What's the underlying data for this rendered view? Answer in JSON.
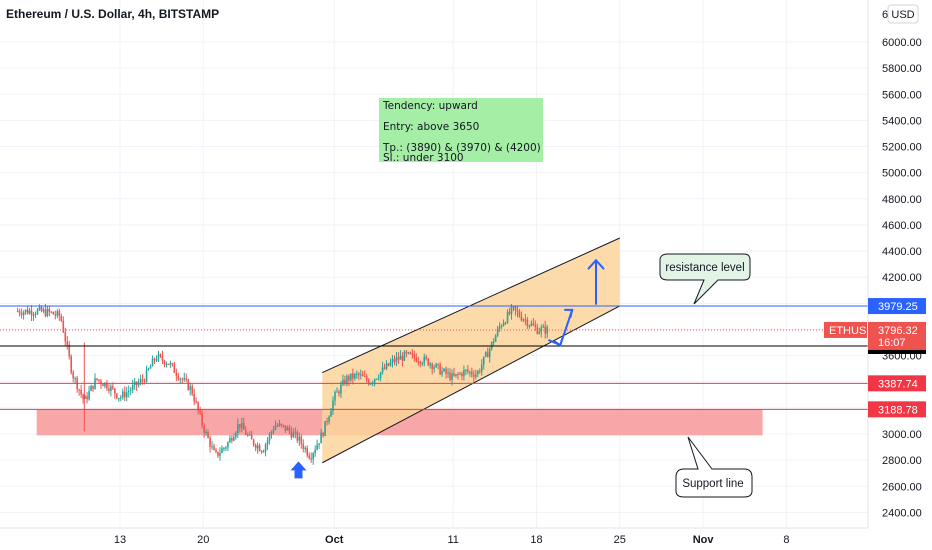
{
  "chart_data": {
    "type": "candlestick",
    "title": "Ethereum / U.S. Dollar, 4h, BITSTAMP",
    "currency_button": "USD",
    "ylim": [
      2300,
      6600
    ],
    "y_ticks": [
      2400,
      2600,
      2800,
      3000,
      3200,
      3400,
      3600,
      3800,
      4000,
      4200,
      4400,
      4600,
      4800,
      5000,
      5200,
      5400,
      5600,
      5800,
      6000
    ],
    "y_tick_labels": [
      "2400.00",
      "2600.00",
      "2800.00",
      "3000.00",
      "3200.00",
      "3400.00",
      "3600.00",
      "3800.00",
      "4000.00",
      "4200.00",
      "4400.00",
      "4600.00",
      "4800.00",
      "5000.00",
      "5200.00",
      "5400.00",
      "5600.00",
      "5800.00",
      "6000.00"
    ],
    "y_top_partial_label": "6.",
    "x_domain": [
      "2021-09-06",
      "2021-11-12"
    ],
    "x_ticks": [
      {
        "label": "13",
        "date": "2021-09-13",
        "bold": false
      },
      {
        "label": "20",
        "date": "2021-09-20",
        "bold": false
      },
      {
        "label": "Oct",
        "date": "2021-10-01",
        "bold": true
      },
      {
        "label": "11",
        "date": "2021-10-11",
        "bold": false
      },
      {
        "label": "18",
        "date": "2021-10-18",
        "bold": false
      },
      {
        "label": "25",
        "date": "2021-10-25",
        "bold": false
      },
      {
        "label": "Nov",
        "date": "2021-11-01",
        "bold": true
      },
      {
        "label": "8",
        "date": "2021-11-08",
        "bold": false
      }
    ],
    "price_path": [
      [
        "2021-09-06",
        3940
      ],
      [
        "2021-09-07",
        3930
      ],
      [
        "2021-09-08",
        3900
      ],
      [
        "2021-09-09",
        3460
      ],
      [
        "2021-09-10",
        3250
      ],
      [
        "2021-09-11",
        3420
      ],
      [
        "2021-09-12",
        3370
      ],
      [
        "2021-09-13",
        3280
      ],
      [
        "2021-09-14",
        3350
      ],
      [
        "2021-09-15",
        3420
      ],
      [
        "2021-09-16",
        3590
      ],
      [
        "2021-09-17",
        3550
      ],
      [
        "2021-09-18",
        3440
      ],
      [
        "2021-09-19",
        3340
      ],
      [
        "2021-09-20",
        3050
      ],
      [
        "2021-09-21",
        2830
      ],
      [
        "2021-09-22",
        2920
      ],
      [
        "2021-09-23",
        3080
      ],
      [
        "2021-09-24",
        2950
      ],
      [
        "2021-09-25",
        2880
      ],
      [
        "2021-09-26",
        3070
      ],
      [
        "2021-09-27",
        3040
      ],
      [
        "2021-09-28",
        2960
      ],
      [
        "2021-09-29",
        2830
      ],
      [
        "2021-09-30",
        3000
      ],
      [
        "2021-10-01",
        3280
      ],
      [
        "2021-10-02",
        3420
      ],
      [
        "2021-10-03",
        3450
      ],
      [
        "2021-10-04",
        3400
      ],
      [
        "2021-10-05",
        3480
      ],
      [
        "2021-10-06",
        3560
      ],
      [
        "2021-10-07",
        3600
      ],
      [
        "2021-10-08",
        3580
      ],
      [
        "2021-10-09",
        3550
      ],
      [
        "2021-10-10",
        3480
      ],
      [
        "2021-10-11",
        3430
      ],
      [
        "2021-10-12",
        3480
      ],
      [
        "2021-10-13",
        3460
      ],
      [
        "2021-10-14",
        3640
      ],
      [
        "2021-10-15",
        3840
      ],
      [
        "2021-10-16",
        3950
      ],
      [
        "2021-10-17",
        3880
      ],
      [
        "2021-10-18",
        3800
      ],
      [
        "2021-10-19",
        3796
      ]
    ],
    "horizontal_lines": [
      {
        "name": "resistance",
        "value": 3979.25,
        "label": "3979.25",
        "color": "#2962ff",
        "style": "solid"
      },
      {
        "name": "entry",
        "value": 3673.5,
        "label": "3673.50",
        "color": "#000000",
        "style": "solid"
      },
      {
        "name": "level-3387",
        "value": 3387.74,
        "label": "3387.74",
        "color": "#f23645",
        "style": "solid"
      },
      {
        "name": "level-3188",
        "value": 3188.78,
        "label": "3188.78",
        "color": "#f23645",
        "style": "solid"
      }
    ],
    "last_price": {
      "symbol": "ETHUSD",
      "value": 3796.32,
      "label": "3796.32",
      "countdown": "16:07",
      "color": "#ef5350"
    },
    "support_zone": {
      "from_date": "2021-09-06",
      "to_date": "2021-11-06",
      "low": 2990,
      "high": 3188.78,
      "color": "#f7a2a2"
    },
    "channel": {
      "lower": [
        [
          "2021-09-30",
          2780
        ],
        [
          "2021-10-25",
          3980
        ]
      ],
      "upper": [
        [
          "2021-09-30",
          3470
        ],
        [
          "2021-10-25",
          4500
        ]
      ],
      "fill": "#fbd39b"
    },
    "arrows": [
      {
        "type": "zigzag",
        "points": [
          [
            "2021-10-19",
            3720
          ],
          [
            "2021-10-21",
            3950
          ]
        ],
        "via": [
          "2021-10-20",
          3680
        ]
      },
      {
        "type": "up",
        "from": [
          "2021-10-23",
          3990
        ],
        "to": [
          "2021-10-23",
          4330
        ]
      }
    ],
    "marker": {
      "date": "2021-09-28",
      "value": 2660,
      "shape": "up-arrow",
      "color": "#2962ff"
    },
    "note_box": {
      "lines": [
        "Tendency: upward",
        "Entry: above 3650",
        "Tp.: (3890) & (3970) & (4200)",
        "Sl.: under 3100"
      ],
      "color": "#a5eea6"
    },
    "callouts": [
      {
        "name": "resistance-callout",
        "text": "resistance level"
      },
      {
        "name": "support-callout",
        "text": "Support line"
      }
    ],
    "grid": true
  }
}
